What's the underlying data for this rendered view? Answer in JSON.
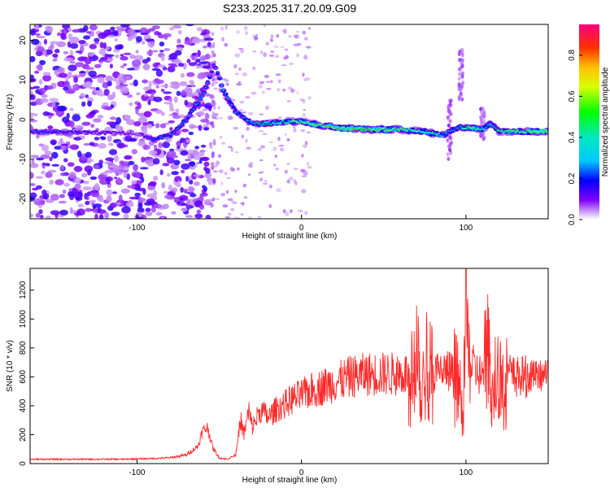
{
  "title": "S233.2025.317.20.09.G09",
  "colors": {
    "snr_line": "#ff2a2a",
    "axis": "#000000",
    "background": "#ffffff"
  },
  "chart_data": [
    {
      "type": "heatmap",
      "name": "spectrogram",
      "xlabel": "Height of straight line (km)",
      "ylabel": "Frequency (Hz)",
      "xlim": [
        -165,
        150
      ],
      "ylim": [
        -25,
        24
      ],
      "xticks": [
        -100,
        0,
        100
      ],
      "yticks": [
        -20,
        -10,
        0,
        10,
        20
      ],
      "colorbar": {
        "label": "Normalized spectral amplitude",
        "range": [
          0,
          0.95
        ],
        "ticks": [
          "0.0",
          "0.2",
          "0.4",
          "0.6",
          "0.8"
        ],
        "tick_values": [
          0.0,
          0.2,
          0.4,
          0.6,
          0.8
        ]
      },
      "ridge": {
        "description_points_x": [
          -165,
          -100,
          -90,
          -80,
          -70,
          -60,
          -53,
          -47,
          -40,
          -30,
          -20,
          -10,
          0,
          20,
          40,
          60,
          75,
          85,
          90,
          95,
          100,
          110,
          115,
          120,
          130,
          150
        ],
        "frequency_hz": [
          -3,
          -3.5,
          -5,
          -4,
          0,
          6,
          14,
          7,
          2,
          -1,
          -1,
          -0.5,
          -0.5,
          -2,
          -2.5,
          -2.5,
          -3,
          -4,
          -3,
          -2,
          -2,
          -2.5,
          -1,
          -3,
          -3,
          -3
        ],
        "amplitude": [
          0.3,
          0.15,
          0.3,
          0.35,
          0.4,
          0.5,
          0.3,
          0.5,
          0.4,
          0.45,
          0.55,
          0.6,
          0.7,
          0.85,
          0.85,
          0.75,
          0.6,
          0.55,
          0.4,
          0.45,
          0.7,
          0.6,
          0.45,
          0.55,
          0.75,
          0.85
        ]
      }
    },
    {
      "type": "line",
      "name": "snr",
      "xlabel": "Height of straight line (km)",
      "ylabel": "SNR (10 * v/v)",
      "xlim": [
        -165,
        150
      ],
      "ylim": [
        0,
        1350
      ],
      "xticks": [
        -100,
        0,
        100
      ],
      "yticks": [
        0,
        200,
        400,
        600,
        800,
        1000,
        1200
      ],
      "series": [
        {
          "name": "SNR",
          "x": [
            -165,
            -140,
            -110,
            -90,
            -80,
            -70,
            -63,
            -60,
            -57,
            -54,
            -50,
            -45,
            -40,
            -37,
            -35,
            -32,
            -30,
            -25,
            -20,
            -15,
            -10,
            -5,
            0,
            5,
            10,
            15,
            20,
            25,
            30,
            40,
            50,
            60,
            67,
            70,
            73,
            76,
            80,
            85,
            90,
            93,
            96,
            98,
            100,
            102,
            105,
            110,
            113,
            116,
            120,
            123,
            125,
            128,
            135,
            140,
            150
          ],
          "y": [
            30,
            30,
            30,
            35,
            40,
            60,
            120,
            230,
            250,
            110,
            40,
            30,
            60,
            300,
            200,
            360,
            250,
            370,
            320,
            380,
            410,
            450,
            470,
            500,
            520,
            540,
            560,
            580,
            600,
            620,
            620,
            620,
            620,
            900,
            550,
            700,
            620,
            630,
            640,
            600,
            500,
            300,
            1050,
            700,
            650,
            600,
            780,
            500,
            680,
            450,
            650,
            600,
            600,
            610,
            610
          ]
        }
      ]
    }
  ]
}
